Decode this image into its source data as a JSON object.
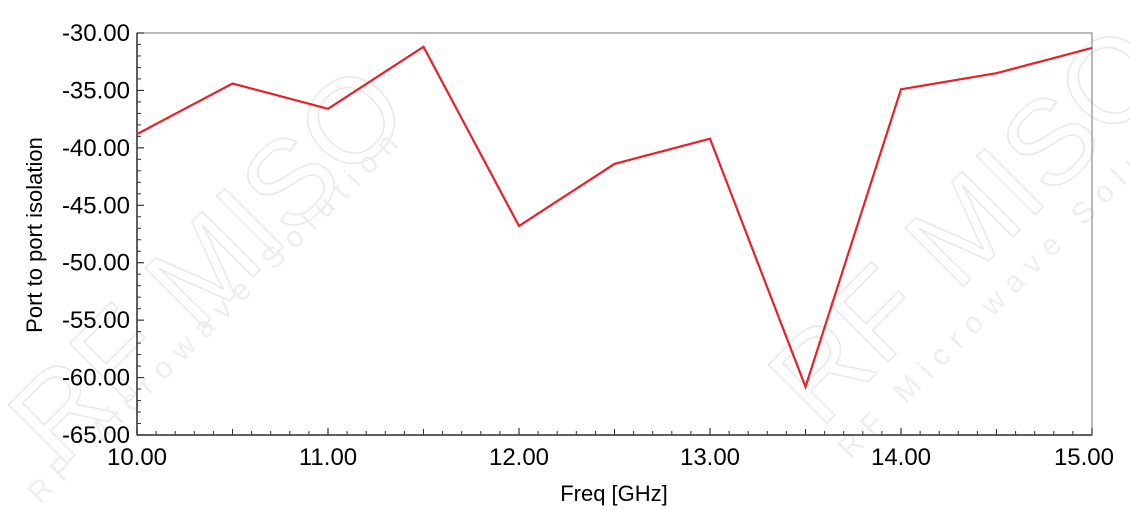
{
  "chart_data": {
    "type": "line",
    "title": "",
    "xlabel": "Freq [GHz]",
    "ylabel": "Port to port isolation",
    "xlim": [
      10,
      15
    ],
    "ylim": [
      -65,
      -30
    ],
    "x_tick_labels": [
      "10.00",
      "11.00",
      "12.00",
      "13.00",
      "14.00",
      "15.00"
    ],
    "y_tick_labels": [
      "-30.00",
      "-35.00",
      "-40.00",
      "-45.00",
      "-50.00",
      "-55.00",
      "-60.00",
      "-65.00"
    ],
    "grid": false,
    "series": [
      {
        "color": "#e8202a",
        "x": [
          10.0,
          10.5,
          11.0,
          11.5,
          12.0,
          12.5,
          13.0,
          13.5,
          14.0,
          14.5,
          15.0
        ],
        "y": [
          -38.8,
          -34.4,
          -36.6,
          -31.2,
          -46.8,
          -41.4,
          -39.2,
          -60.8,
          -34.9,
          -33.5,
          -31.3
        ]
      }
    ]
  },
  "watermark": {
    "brand": "RF MISO",
    "tagline": "RF Microwave Solution"
  }
}
